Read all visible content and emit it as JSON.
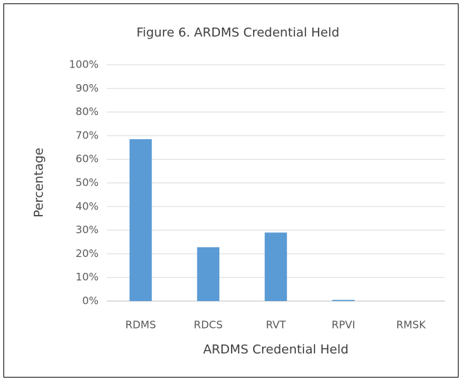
{
  "chart_data": {
    "type": "bar",
    "title": "Figure 6. ARDMS Credential Held",
    "x_label": "ARDMS Credential Held",
    "y_label": "Percentage",
    "categories": [
      "RDMS",
      "RDCS",
      "RVT",
      "RPVI",
      "RMSK"
    ],
    "values": [
      68.5,
      22.8,
      29,
      0.5,
      0
    ],
    "color": "#5b9bd5",
    "ylim": [
      0,
      100
    ],
    "yticks": [
      {
        "value": 0,
        "label": "0%"
      },
      {
        "value": 10,
        "label": "10%"
      },
      {
        "value": 20,
        "label": "20%"
      },
      {
        "value": 30,
        "label": "30%"
      },
      {
        "value": 40,
        "label": "40%"
      },
      {
        "value": 50,
        "label": "50%"
      },
      {
        "value": 60,
        "label": "60%"
      },
      {
        "value": 70,
        "label": "70%"
      },
      {
        "value": 80,
        "label": "80%"
      },
      {
        "value": 90,
        "label": "90%"
      },
      {
        "value": 100,
        "label": "100%"
      }
    ],
    "grid": true
  }
}
